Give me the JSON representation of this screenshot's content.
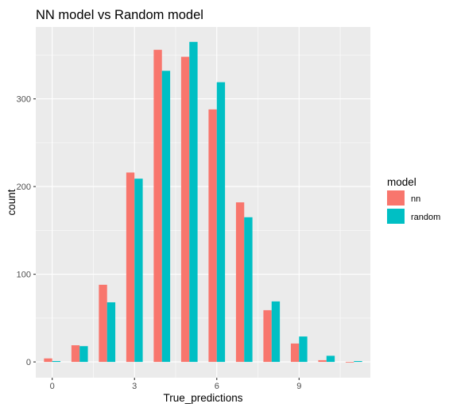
{
  "chart_data": {
    "type": "bar",
    "title": "NN model vs Random model",
    "xlabel": "True_predictions",
    "ylabel": "count",
    "x": [
      0,
      1,
      2,
      3,
      4,
      5,
      6,
      7,
      8,
      9,
      10,
      11
    ],
    "series": [
      {
        "name": "nn",
        "color": "#F8766D",
        "values": [
          4,
          19,
          88,
          216,
          356,
          348,
          288,
          182,
          59,
          21,
          2,
          0
        ]
      },
      {
        "name": "random",
        "color": "#00BFC4",
        "values": [
          1,
          18,
          68,
          209,
          332,
          365,
          319,
          165,
          69,
          29,
          7,
          1
        ]
      }
    ],
    "xticks": [
      0,
      3,
      6,
      9
    ],
    "xtick_labels": [
      "0",
      "3",
      "6",
      "9"
    ],
    "yticks": [
      0,
      100,
      200,
      300
    ],
    "ytick_labels": [
      "0",
      "100",
      "200",
      "300"
    ],
    "xlim": [
      -0.6,
      11.6
    ],
    "ylim": [
      -18,
      382
    ],
    "legend": {
      "title": "model",
      "position": "right"
    },
    "grid": true,
    "panel_background": "#EBEBEB"
  }
}
